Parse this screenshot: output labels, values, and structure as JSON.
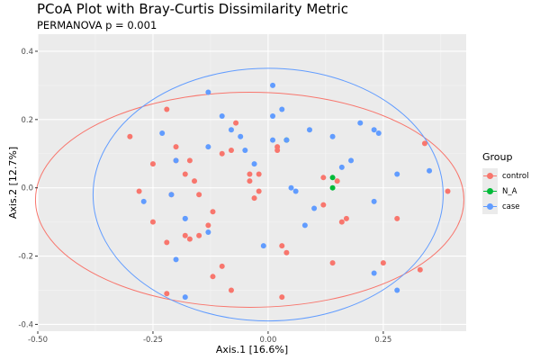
{
  "title": "PCoA Plot with Bray-Curtis Dissimilarity Metric",
  "subtitle": "PERMANOVA p = 0.001",
  "legend": {
    "title": "Group",
    "items": [
      {
        "label": "control",
        "color": "#F8766D"
      },
      {
        "label": "N_A",
        "color": "#00BA38"
      },
      {
        "label": "case",
        "color": "#619CFF"
      }
    ]
  },
  "chart_data": {
    "type": "scatter",
    "title": "PCoA Plot with Bray-Curtis Dissimilarity Metric",
    "subtitle": "PERMANOVA p = 0.001",
    "xlabel": "Axis.1   [16.6%]",
    "ylabel": "Axis.2   [12.7%]",
    "xlim": [
      -0.5,
      0.43
    ],
    "ylim": [
      -0.42,
      0.45
    ],
    "xticks": [
      -0.5,
      -0.25,
      0.0,
      0.25
    ],
    "xtick_labels": [
      "-0.50",
      "-0.25",
      "0.00",
      "0.25"
    ],
    "yticks": [
      -0.4,
      -0.2,
      0.0,
      0.2,
      0.4
    ],
    "ytick_labels": [
      "-0.4",
      "-0.2",
      "0.0",
      "0.2",
      "0.4"
    ],
    "grid": true,
    "background": "#ebebeb",
    "legend_position": "right",
    "series": [
      {
        "name": "control",
        "color": "#F8766D",
        "points": [
          [
            -0.3,
            0.15
          ],
          [
            -0.22,
            0.23
          ],
          [
            -0.2,
            0.12
          ],
          [
            -0.25,
            0.07
          ],
          [
            -0.2,
            0.08
          ],
          [
            -0.18,
            0.04
          ],
          [
            -0.17,
            0.08
          ],
          [
            -0.16,
            0.02
          ],
          [
            -0.15,
            -0.02
          ],
          [
            -0.21,
            -0.02
          ],
          [
            -0.28,
            -0.01
          ],
          [
            -0.25,
            -0.1
          ],
          [
            -0.22,
            -0.16
          ],
          [
            -0.18,
            -0.14
          ],
          [
            -0.17,
            -0.15
          ],
          [
            -0.15,
            -0.14
          ],
          [
            -0.12,
            -0.07
          ],
          [
            -0.13,
            -0.11
          ],
          [
            -0.08,
            0.11
          ],
          [
            -0.07,
            0.19
          ],
          [
            -0.1,
            0.1
          ],
          [
            -0.04,
            0.04
          ],
          [
            -0.04,
            0.02
          ],
          [
            -0.03,
            -0.03
          ],
          [
            -0.02,
            -0.01
          ],
          [
            -0.02,
            0.04
          ],
          [
            -0.1,
            -0.23
          ],
          [
            -0.12,
            -0.26
          ],
          [
            -0.08,
            -0.3
          ],
          [
            -0.22,
            -0.31
          ],
          [
            0.02,
            0.12
          ],
          [
            0.02,
            0.11
          ],
          [
            0.03,
            -0.17
          ],
          [
            0.04,
            -0.19
          ],
          [
            0.03,
            -0.32
          ],
          [
            0.12,
            -0.05
          ],
          [
            0.12,
            0.03
          ],
          [
            0.15,
            0.02
          ],
          [
            0.16,
            -0.1
          ],
          [
            0.17,
            -0.09
          ],
          [
            0.14,
            -0.22
          ],
          [
            0.25,
            -0.22
          ],
          [
            0.33,
            -0.24
          ],
          [
            0.28,
            -0.09
          ],
          [
            0.34,
            0.13
          ],
          [
            0.39,
            -0.01
          ]
        ]
      },
      {
        "name": "N_A",
        "color": "#00BA38",
        "points": [
          [
            0.04,
            0.14
          ],
          [
            0.14,
            0.03
          ],
          [
            0.14,
            0.0
          ]
        ]
      },
      {
        "name": "case",
        "color": "#619CFF",
        "points": [
          [
            -0.23,
            0.16
          ],
          [
            -0.13,
            0.28
          ],
          [
            -0.08,
            0.17
          ],
          [
            -0.06,
            0.15
          ],
          [
            -0.05,
            0.11
          ],
          [
            -0.1,
            0.21
          ],
          [
            -0.13,
            0.12
          ],
          [
            -0.2,
            0.08
          ],
          [
            -0.27,
            -0.04
          ],
          [
            -0.21,
            -0.02
          ],
          [
            -0.18,
            -0.09
          ],
          [
            -0.18,
            -0.09
          ],
          [
            -0.13,
            -0.13
          ],
          [
            -0.2,
            -0.21
          ],
          [
            -0.18,
            -0.32
          ],
          [
            -0.03,
            0.07
          ],
          [
            0.01,
            0.3
          ],
          [
            0.03,
            0.23
          ],
          [
            0.01,
            0.21
          ],
          [
            0.04,
            0.14
          ],
          [
            0.01,
            0.14
          ],
          [
            0.09,
            0.17
          ],
          [
            0.14,
            0.15
          ],
          [
            0.2,
            0.19
          ],
          [
            0.23,
            0.17
          ],
          [
            0.24,
            0.16
          ],
          [
            0.18,
            0.08
          ],
          [
            0.16,
            0.06
          ],
          [
            0.06,
            -0.01
          ],
          [
            0.05,
            0.0
          ],
          [
            0.1,
            -0.06
          ],
          [
            0.08,
            -0.11
          ],
          [
            0.23,
            -0.04
          ],
          [
            0.28,
            0.04
          ],
          [
            0.35,
            0.05
          ],
          [
            0.23,
            -0.25
          ],
          [
            0.28,
            -0.3
          ],
          [
            -0.01,
            -0.17
          ]
        ]
      }
    ],
    "ellipses": [
      {
        "series": "control",
        "color": "#F8766D",
        "center": [
          -0.04,
          -0.035
        ],
        "radius_x": 0.465,
        "radius_y": 0.315
      },
      {
        "series": "case",
        "color": "#619CFF",
        "center": [
          0.0,
          -0.02
        ],
        "radius_x": 0.38,
        "radius_y": 0.37
      }
    ]
  }
}
